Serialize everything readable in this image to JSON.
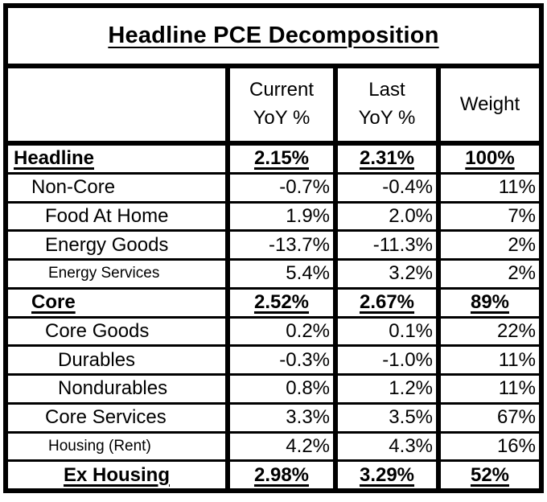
{
  "title": "Headline PCE Decomposition",
  "header": {
    "current": "Current\nYoY %",
    "last": "Last\nYoY %",
    "weight": "Weight"
  },
  "colors": {
    "text": "#000000",
    "border": "#000000",
    "background": "#ffffff"
  },
  "chart_data": {
    "type": "table",
    "title": "Headline PCE Decomposition",
    "columns": [
      "",
      "Current YoY %",
      "Last YoY %",
      "Weight"
    ],
    "rows": [
      {
        "label": "Headline",
        "current": "2.15%",
        "last": "2.31%",
        "weight": "100%",
        "indent": 0,
        "emphasis": true
      },
      {
        "label": "Non-Core",
        "current": "-0.7%",
        "last": "-0.4%",
        "weight": "11%",
        "indent": 1,
        "emphasis": false
      },
      {
        "label": "Food At Home",
        "current": "1.9%",
        "last": "2.0%",
        "weight": "7%",
        "indent": 2,
        "emphasis": false
      },
      {
        "label": "Energy Goods",
        "current": "-13.7%",
        "last": "-11.3%",
        "weight": "2%",
        "indent": 2,
        "emphasis": false
      },
      {
        "label": "Energy Services",
        "current": "5.4%",
        "last": "3.2%",
        "weight": "2%",
        "indent": 2,
        "emphasis": false
      },
      {
        "label": "Core",
        "current": "2.52%",
        "last": "2.67%",
        "weight": "89%",
        "indent": 1,
        "emphasis": true
      },
      {
        "label": "Core Goods",
        "current": "0.2%",
        "last": "0.1%",
        "weight": "22%",
        "indent": 2,
        "emphasis": false
      },
      {
        "label": "Durables",
        "current": "-0.3%",
        "last": "-1.0%",
        "weight": "11%",
        "indent": 3,
        "emphasis": false
      },
      {
        "label": "Nondurables",
        "current": "0.8%",
        "last": "1.2%",
        "weight": "11%",
        "indent": 3,
        "emphasis": false
      },
      {
        "label": "Core Services",
        "current": "3.3%",
        "last": "3.5%",
        "weight": "67%",
        "indent": 2,
        "emphasis": false
      },
      {
        "label": "Housing (Rent)",
        "current": "4.2%",
        "last": "4.3%",
        "weight": "16%",
        "indent": 2,
        "emphasis": false
      },
      {
        "label": "Ex Housing",
        "current": "2.98%",
        "last": "3.29%",
        "weight": "52%",
        "indent": 2,
        "emphasis": true
      }
    ]
  }
}
